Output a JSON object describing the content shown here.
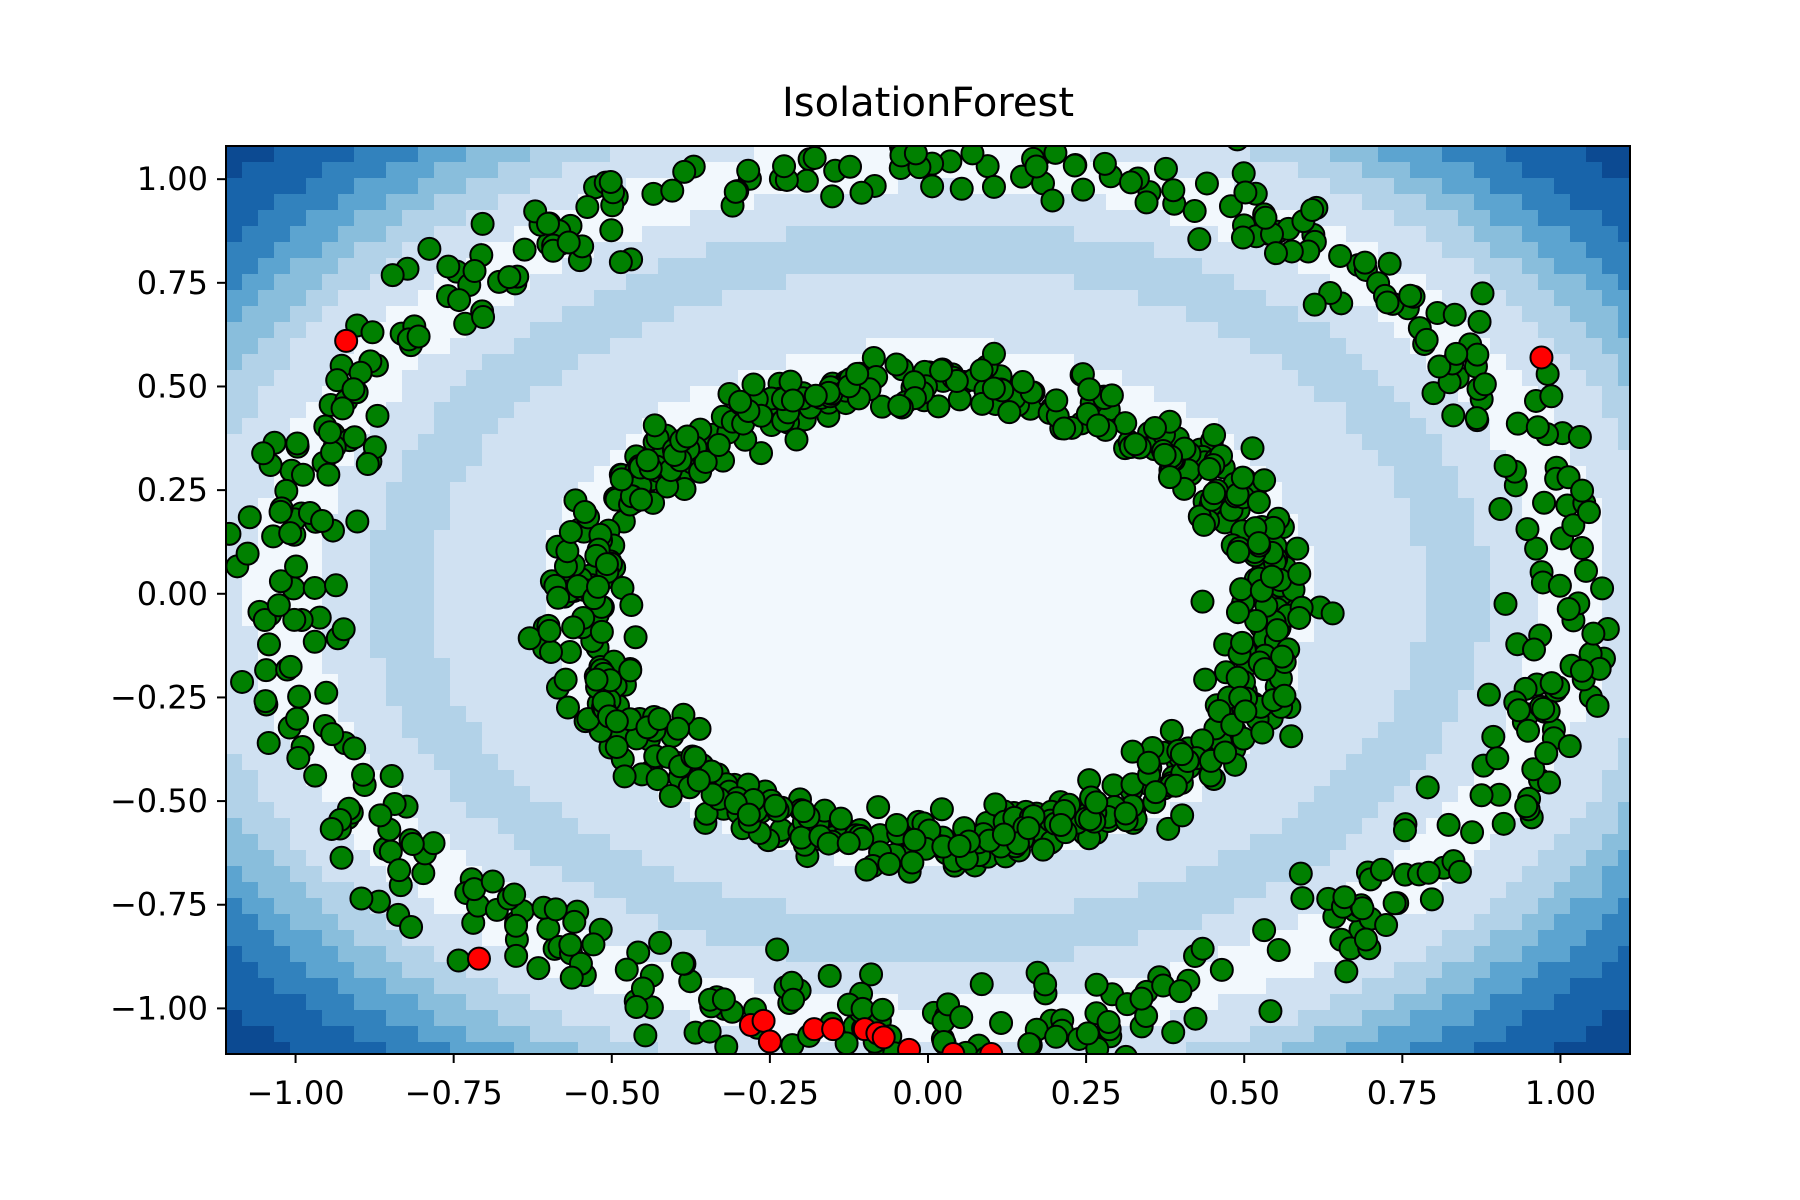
{
  "chart_data": {
    "type": "scatter",
    "title": "IsolationForest",
    "xlabel": "",
    "ylabel": "",
    "xlim": [
      -1.11,
      1.11
    ],
    "ylim": [
      -1.11,
      1.08
    ],
    "grid": false,
    "legend": "none",
    "x_ticks": [
      -1.0,
      -0.75,
      -0.5,
      -0.25,
      0.0,
      0.25,
      0.5,
      0.75,
      1.0
    ],
    "x_tick_labels": [
      "−1.00",
      "−0.75",
      "−0.50",
      "−0.25",
      "0.00",
      "0.25",
      "0.50",
      "0.75",
      "1.00"
    ],
    "y_ticks": [
      1.0,
      0.75,
      0.5,
      0.25,
      0.0,
      -0.25,
      -0.5,
      -0.75,
      -1.0
    ],
    "y_tick_labels": [
      "1.00",
      "0.75",
      "0.50",
      "0.25",
      "0.00",
      "−0.25",
      "−0.50",
      "−0.75",
      "−1.00"
    ],
    "background": {
      "type": "contourf",
      "colormap": "Blues",
      "description_levels": [
        "#f2f8fd",
        "#d0e1f2",
        "#b2d2e8",
        "#89bedc",
        "#5ca4d0",
        "#3282bd",
        "#1864aa",
        "#0c4a92"
      ]
    },
    "series": [
      {
        "name": "",
        "color": "#008000",
        "edge_color": "#000000",
        "rings": [
          {
            "cx": 0.0,
            "cy": -0.05,
            "rx": 0.55,
            "ry": 0.55,
            "count": 700,
            "spread": 0.06
          },
          {
            "cx": 0.0,
            "cy": 0.0,
            "rx": 1.02,
            "ry": 1.04,
            "count": 520,
            "spread": 0.05
          }
        ]
      },
      {
        "name": "",
        "color": "#ff0000",
        "edge_color": "#000000",
        "points": [
          [
            -0.92,
            0.61
          ],
          [
            0.97,
            0.57
          ],
          [
            -0.71,
            -0.88
          ],
          [
            -0.28,
            -1.04
          ],
          [
            -0.26,
            -1.03
          ],
          [
            -0.25,
            -1.08
          ],
          [
            -0.18,
            -1.05
          ],
          [
            -0.15,
            -1.05
          ],
          [
            -0.1,
            -1.05
          ],
          [
            -0.08,
            -1.06
          ],
          [
            -0.07,
            -1.07
          ],
          [
            -0.03,
            -1.1
          ],
          [
            0.04,
            -1.11
          ],
          [
            0.1,
            -1.11
          ]
        ]
      }
    ]
  }
}
